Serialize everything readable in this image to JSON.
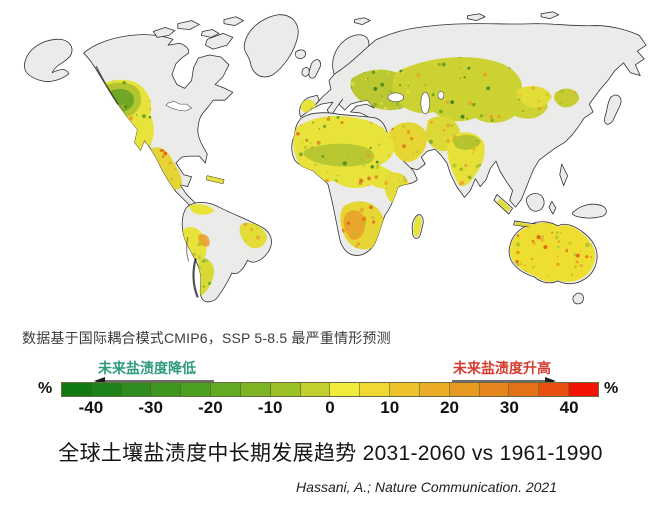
{
  "figure": {
    "subtitle": "数据基于国际耦合模式CMIP6，SSP 5-8.5 最严重情形预测",
    "title": "全球土壤盐渍度中长期发展趋势 2031-2060 vs 1961-1990",
    "citation": "Hassani, A.; Nature Communication. 2021"
  },
  "legend": {
    "decrease_label": "未来盐渍度降低",
    "increase_label": "未来盐渍度升高",
    "decrease_color": "#2e9b7d",
    "increase_color": "#d43c30",
    "arrow_color": "#3d3d3d",
    "unit_left": "%",
    "unit_right": "%",
    "value_range": [
      -45,
      45
    ],
    "tick_labels": [
      "-40",
      "-30",
      "-20",
      "-10",
      "0",
      "10",
      "20",
      "30",
      "40"
    ],
    "segment_colors": [
      "#117a11",
      "#1f831c",
      "#2e8d1e",
      "#3d961f",
      "#4ca021",
      "#61aa22",
      "#7cb424",
      "#9cc028",
      "#c3cf2e",
      "#f0ed3a",
      "#f2d832",
      "#eec22b",
      "#ebad25",
      "#e89921",
      "#e5851c",
      "#e27117",
      "#e9500f",
      "#f21507"
    ]
  },
  "map": {
    "sea_color": "#ffffff",
    "land_color": "#ebebe9",
    "outline_color": "#2f2f2f",
    "data_colors": {
      "yellow": "#e8e33b",
      "olive": "#adc02e",
      "green": "#63a323",
      "dark_green": "#35821b",
      "orange": "#eb9a28",
      "deep_orange": "#e05c15"
    }
  }
}
